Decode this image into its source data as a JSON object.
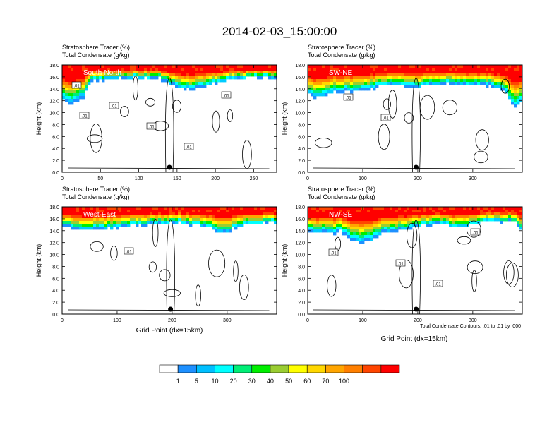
{
  "title": "2014-02-03_15:00:00",
  "panel_header": {
    "line1": "Stratosphere Tracer   (%)",
    "line2": "Total Condensate   (g/kg)"
  },
  "ylabel": "Height (km)",
  "xlabel": "Grid Point (dx=15km)",
  "footnote": "Total Condensate Contours: .01 to .01 by .000",
  "colors": {
    "levels": [
      "#ffffff",
      "#1e90ff",
      "#00ccff",
      "#00ffff",
      "#00ee76",
      "#00ee00",
      "#9acd32",
      "#ffff00",
      "#ffd700",
      "#ffa500",
      "#ff7f00",
      "#ff4500",
      "#ff0000"
    ],
    "contour": "#000000"
  },
  "chart_data": [
    {
      "type": "heatmap",
      "name": "South-North",
      "xlim": [
        0,
        280
      ],
      "ylim": [
        0,
        18
      ],
      "xticks": [
        "0",
        "50",
        "100",
        "150",
        "200",
        "250"
      ],
      "yticks": [
        "0.0",
        "2.0",
        "4.0",
        "6.0",
        "8.0",
        "10.0",
        "12.0",
        "14.0",
        "16.0",
        "18.0"
      ],
      "contour_labels": [
        ".01",
        ".01",
        ".01",
        ".01",
        ".01",
        ".01"
      ],
      "marker_x": 140
    },
    {
      "type": "heatmap",
      "name": "SW-NE",
      "xlim": [
        0,
        390
      ],
      "ylim": [
        0,
        18
      ],
      "xticks": [
        "0",
        "100",
        "200",
        "300"
      ],
      "yticks": [
        "0.0",
        "2.0",
        "4.0",
        "6.0",
        "8.0",
        "10.0",
        "12.0",
        "14.0",
        "16.0",
        "18.0"
      ],
      "contour_labels": [
        ".01",
        ".01"
      ],
      "marker_x": 197
    },
    {
      "type": "heatmap",
      "name": "West-East",
      "xlim": [
        0,
        390
      ],
      "ylim": [
        0,
        18
      ],
      "xticks": [
        "0",
        "100",
        "200",
        "300"
      ],
      "yticks": [
        "0.0",
        "2.0",
        "4.0",
        "6.0",
        "8.0",
        "10.0",
        "12.0",
        "14.0",
        "16.0",
        "18.0"
      ],
      "contour_labels": [
        ".01"
      ],
      "marker_x": 197
    },
    {
      "type": "heatmap",
      "name": "NW-SE",
      "xlim": [
        0,
        390
      ],
      "ylim": [
        0,
        18
      ],
      "xticks": [
        "0",
        "100",
        "200",
        "300"
      ],
      "yticks": [
        "0.0",
        "2.0",
        "4.0",
        "6.0",
        "8.0",
        "10.0",
        "12.0",
        "14.0",
        "16.0",
        "18.0"
      ],
      "contour_labels": [
        ".01",
        ".01",
        ".01",
        ".01"
      ],
      "marker_x": 197
    }
  ],
  "colorbar": {
    "ticks": [
      "1",
      "5",
      "10",
      "20",
      "30",
      "40",
      "50",
      "60",
      "70",
      "100"
    ],
    "colors": [
      "#ffffff",
      "#1e90ff",
      "#00bfff",
      "#00ffff",
      "#00ee76",
      "#00ee00",
      "#9acd32",
      "#ffff00",
      "#ffd700",
      "#ffa500",
      "#ff7f00",
      "#ff4500",
      "#ff0000"
    ]
  }
}
